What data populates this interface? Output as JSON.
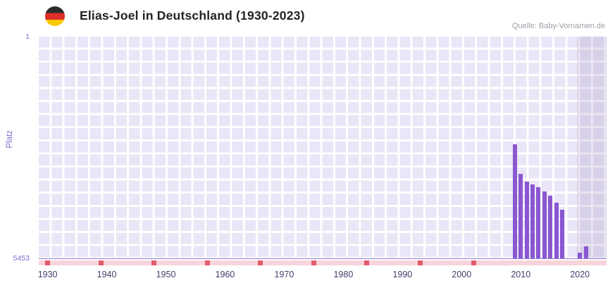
{
  "header": {
    "title": "Elias-Joel in Deutschland (1930-2023)",
    "source": "Quelle: Baby-Vornamen.de"
  },
  "chart_data": {
    "type": "bar",
    "title": "Elias-Joel in Deutschland (1930-2023)",
    "xlabel": "",
    "ylabel": "Platz",
    "y_axis": {
      "min": 1,
      "max": 5453,
      "inverted": true,
      "top_tick": "1",
      "bottom_tick": "5453"
    },
    "x_axis": {
      "domain_start": 1928.5,
      "domain_end": 2024.5,
      "ticks": [
        "1930",
        "1940",
        "1950",
        "1960",
        "1970",
        "1980",
        "1990",
        "2000",
        "2010",
        "2020"
      ]
    },
    "series": [
      {
        "name": "Platz",
        "points": [
          [
            2009,
            2640
          ],
          [
            2010,
            3365
          ],
          [
            2011,
            3555
          ],
          [
            2012,
            3625
          ],
          [
            2013,
            3695
          ],
          [
            2014,
            3795
          ],
          [
            2015,
            3900
          ],
          [
            2016,
            4070
          ],
          [
            2017,
            4245
          ],
          [
            2020,
            5290
          ],
          [
            2021,
            5145
          ]
        ]
      }
    ],
    "annotations": {
      "no_data_marker_years": [
        1930,
        1939,
        1948,
        1957,
        1966,
        1975,
        1984,
        1993,
        2002
      ],
      "shaded_region": {
        "from": 2019.5,
        "to": 2024.5
      }
    },
    "grid": true,
    "legend": false,
    "colors": {
      "bar": "#8a57d1",
      "plot_background": "#eae6f7",
      "grid_line": "#ffffff",
      "axis_text": "#7e6bce",
      "x_tick_text": "#3f3f6e",
      "baseline_band": "#f8d3db",
      "no_data_marker": "#e25b6d",
      "shaded_region": "rgba(148,134,188,0.22)",
      "flag_black": "#2b2b2b",
      "flag_red": "#dd2f29",
      "flag_gold": "#f8c800"
    }
  }
}
